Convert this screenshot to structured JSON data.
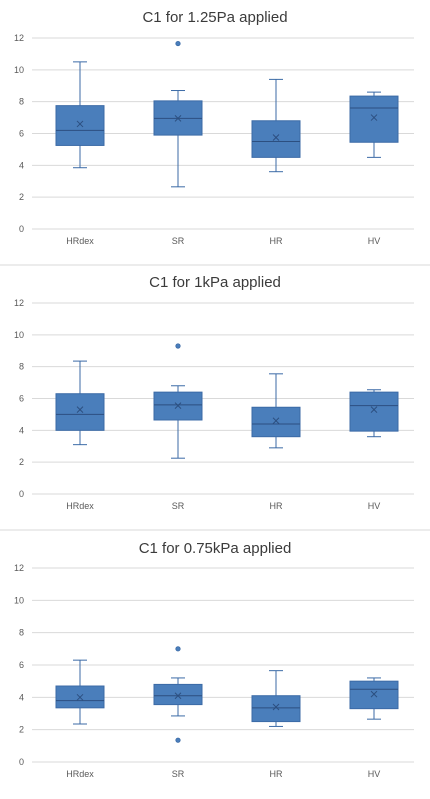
{
  "chart_data": [
    {
      "type": "boxplot",
      "title": "C1 for 1.25Pa applied",
      "categories": [
        "HRdex",
        "SR",
        "HR",
        "HV"
      ],
      "ylim": [
        0,
        12
      ],
      "yticks": [
        0,
        2,
        4,
        6,
        8,
        10,
        12
      ],
      "grid": true,
      "boxes": [
        {
          "min": 3.85,
          "q1": 5.25,
          "median": 6.2,
          "q3": 7.75,
          "max": 10.5,
          "mean": 6.6,
          "outliers": []
        },
        {
          "min": 2.65,
          "q1": 5.9,
          "median": 6.95,
          "q3": 8.05,
          "max": 8.7,
          "mean": 6.95,
          "outliers": [
            11.65
          ]
        },
        {
          "min": 3.6,
          "q1": 4.5,
          "median": 5.5,
          "q3": 6.8,
          "max": 9.4,
          "mean": 5.75,
          "outliers": []
        },
        {
          "min": 4.5,
          "q1": 5.45,
          "median": 7.6,
          "q3": 8.35,
          "max": 8.6,
          "mean": 7.0,
          "outliers": []
        }
      ]
    },
    {
      "type": "boxplot",
      "title": "C1 for 1kPa applied",
      "categories": [
        "HRdex",
        "SR",
        "HR",
        "HV"
      ],
      "ylim": [
        0,
        12
      ],
      "yticks": [
        0,
        2,
        4,
        6,
        8,
        10,
        12
      ],
      "grid": true,
      "boxes": [
        {
          "min": 3.1,
          "q1": 4.0,
          "median": 5.0,
          "q3": 6.3,
          "max": 8.35,
          "mean": 5.3,
          "outliers": []
        },
        {
          "min": 2.25,
          "q1": 4.65,
          "median": 5.6,
          "q3": 6.4,
          "max": 6.8,
          "mean": 5.55,
          "outliers": [
            9.3
          ]
        },
        {
          "min": 2.9,
          "q1": 3.6,
          "median": 4.4,
          "q3": 5.45,
          "max": 7.55,
          "mean": 4.6,
          "outliers": []
        },
        {
          "min": 3.6,
          "q1": 3.95,
          "median": 5.55,
          "q3": 6.4,
          "max": 6.55,
          "mean": 5.3,
          "outliers": []
        }
      ]
    },
    {
      "type": "boxplot",
      "title": "C1 for 0.75kPa applied",
      "categories": [
        "HRdex",
        "SR",
        "HR",
        "HV"
      ],
      "ylim": [
        0,
        12
      ],
      "yticks": [
        0,
        2,
        4,
        6,
        8,
        10,
        12
      ],
      "grid": true,
      "boxes": [
        {
          "min": 2.35,
          "q1": 3.35,
          "median": 3.8,
          "q3": 4.7,
          "max": 6.3,
          "mean": 4.0,
          "outliers": []
        },
        {
          "min": 2.85,
          "q1": 3.55,
          "median": 4.1,
          "q3": 4.8,
          "max": 5.2,
          "mean": 4.1,
          "outliers": [
            7.0,
            1.35
          ]
        },
        {
          "min": 2.2,
          "q1": 2.5,
          "median": 3.35,
          "q3": 4.1,
          "max": 5.65,
          "mean": 3.4,
          "outliers": []
        },
        {
          "min": 2.65,
          "q1": 3.3,
          "median": 4.5,
          "q3": 5.0,
          "max": 5.2,
          "mean": 4.2,
          "outliers": []
        }
      ]
    }
  ]
}
